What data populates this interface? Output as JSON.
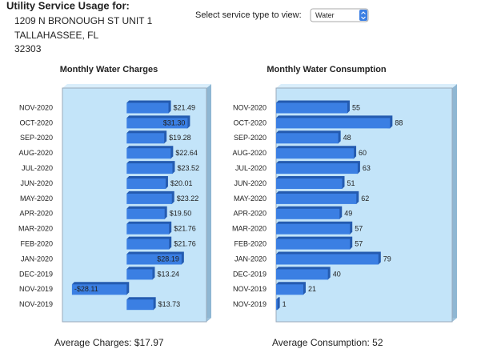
{
  "header": {
    "title": "Utility Service Usage for:",
    "address": [
      "1209 N BRONOUGH ST UNIT 1",
      "TALLAHASSEE, FL",
      "32303"
    ]
  },
  "selector": {
    "label": "Select service type to view:",
    "value": "Water"
  },
  "chart_data": [
    {
      "type": "bar",
      "orientation": "horizontal",
      "title": "Monthly Water Charges",
      "categories": [
        "NOV-2020",
        "OCT-2020",
        "SEP-2020",
        "AUG-2020",
        "JUL-2020",
        "JUN-2020",
        "MAY-2020",
        "APR-2020",
        "MAR-2020",
        "FEB-2020",
        "JAN-2020",
        "DEC-2019",
        "NOV-2019",
        "NOV-2019"
      ],
      "values": [
        21.49,
        31.3,
        19.28,
        22.64,
        23.52,
        20.01,
        23.22,
        19.5,
        21.76,
        21.76,
        28.19,
        13.24,
        -28.11,
        13.73
      ],
      "value_labels": [
        "$21.49",
        "$31.30",
        "$19.28",
        "$22.64",
        "$23.52",
        "$20.01",
        "$23.22",
        "$19.50",
        "$21.76",
        "$21.76",
        "$28.19",
        "$13.24",
        "-$28.11",
        "$13.73"
      ],
      "xlim": [
        -33,
        41
      ],
      "color": "#3b7fe3"
    },
    {
      "type": "bar",
      "orientation": "horizontal",
      "title": "Monthly Water Consumption",
      "categories": [
        "NOV-2020",
        "OCT-2020",
        "SEP-2020",
        "AUG-2020",
        "JUL-2020",
        "JUN-2020",
        "MAY-2020",
        "APR-2020",
        "MAR-2020",
        "FEB-2020",
        "JAN-2020",
        "DEC-2019",
        "NOV-2019",
        "NOV-2019"
      ],
      "values": [
        55,
        88,
        48,
        60,
        63,
        51,
        62,
        49,
        57,
        57,
        79,
        40,
        21,
        1
      ],
      "xlim": [
        0,
        136
      ],
      "color": "#3b7fe3"
    }
  ],
  "summary": [
    "Average Charges: $17.97",
    "Average Consumption: 52"
  ]
}
